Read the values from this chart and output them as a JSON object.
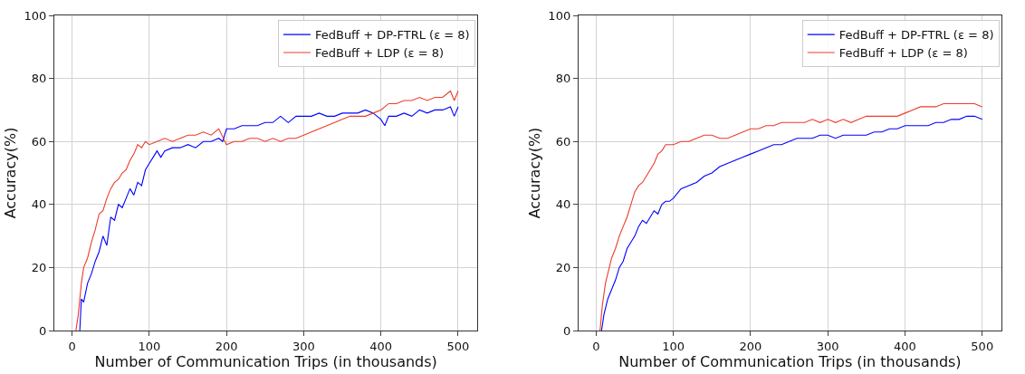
{
  "chart_data": [
    {
      "type": "line",
      "xlabel": "Number of Communication Trips (in thousands)",
      "ylabel": "Accuracy(%)",
      "xlim": [
        -23,
        525
      ],
      "ylim": [
        0,
        100
      ],
      "xticks": [
        0,
        100,
        200,
        300,
        400,
        500
      ],
      "yticks": [
        0,
        20,
        40,
        60,
        80,
        100
      ],
      "grid": true,
      "legend": "top right",
      "line_style": "solid",
      "marker": "none",
      "series": [
        {
          "name": "FedBuff + DP-FTRL (ε = 8)",
          "color": "#0000ff",
          "x": [
            10,
            12,
            15,
            20,
            25,
            30,
            35,
            40,
            45,
            50,
            55,
            60,
            65,
            70,
            75,
            80,
            85,
            90,
            95,
            100,
            105,
            110,
            115,
            120,
            130,
            140,
            150,
            160,
            170,
            180,
            190,
            195,
            200,
            210,
            220,
            230,
            240,
            250,
            260,
            270,
            280,
            290,
            300,
            310,
            320,
            330,
            340,
            350,
            360,
            370,
            380,
            390,
            400,
            405,
            410,
            420,
            430,
            440,
            450,
            460,
            470,
            480,
            490,
            495,
            500
          ],
          "values": [
            0,
            10,
            9,
            15,
            18,
            22,
            25,
            30,
            27,
            36,
            35,
            40,
            39,
            42,
            45,
            43,
            47,
            46,
            51,
            53,
            55,
            57,
            55,
            57,
            58,
            58,
            59,
            58,
            60,
            60,
            61,
            60,
            64,
            64,
            65,
            65,
            65,
            66,
            66,
            68,
            66,
            68,
            68,
            68,
            69,
            68,
            68,
            69,
            69,
            69,
            70,
            69,
            67,
            65,
            68,
            68,
            69,
            68,
            70,
            69,
            70,
            70,
            71,
            68,
            71
          ]
        },
        {
          "name": "FedBuff + LDP (ε = 8)",
          "color": "#ee3b2b",
          "x": [
            5,
            8,
            12,
            15,
            20,
            25,
            30,
            35,
            40,
            45,
            50,
            55,
            60,
            65,
            70,
            75,
            80,
            85,
            90,
            95,
            100,
            110,
            120,
            130,
            140,
            150,
            160,
            170,
            180,
            190,
            200,
            210,
            220,
            230,
            240,
            250,
            260,
            270,
            280,
            290,
            300,
            310,
            320,
            330,
            340,
            350,
            360,
            370,
            380,
            390,
            400,
            410,
            420,
            430,
            440,
            450,
            460,
            470,
            480,
            490,
            495,
            500
          ],
          "values": [
            0,
            5,
            15,
            20,
            23,
            28,
            32,
            37,
            38,
            42,
            45,
            47,
            48,
            50,
            51,
            54,
            56,
            59,
            58,
            60,
            59,
            60,
            61,
            60,
            61,
            62,
            62,
            63,
            62,
            64,
            59,
            60,
            60,
            61,
            61,
            60,
            61,
            60,
            61,
            61,
            62,
            63,
            64,
            65,
            66,
            67,
            68,
            68,
            68,
            69,
            70,
            72,
            72,
            73,
            73,
            74,
            73,
            74,
            74,
            76,
            73,
            76
          ]
        }
      ]
    },
    {
      "type": "line",
      "xlabel": "Number of Communication Trips (in thousands)",
      "ylabel": "Accuracy(%)",
      "xlim": [
        -23,
        525
      ],
      "ylim": [
        0,
        100
      ],
      "xticks": [
        0,
        100,
        200,
        300,
        400,
        500
      ],
      "yticks": [
        0,
        20,
        40,
        60,
        80,
        100
      ],
      "grid": true,
      "legend": "top right",
      "line_style": "solid",
      "marker": "none",
      "series": [
        {
          "name": "FedBuff + DP-FTRL (ε = 8)",
          "color": "#0000ff",
          "x": [
            7,
            10,
            15,
            20,
            25,
            30,
            35,
            40,
            45,
            50,
            55,
            60,
            65,
            70,
            75,
            80,
            85,
            90,
            95,
            100,
            110,
            120,
            130,
            140,
            150,
            160,
            170,
            180,
            190,
            200,
            210,
            220,
            230,
            240,
            250,
            260,
            270,
            280,
            290,
            300,
            310,
            320,
            330,
            340,
            350,
            360,
            370,
            380,
            390,
            400,
            410,
            420,
            430,
            440,
            450,
            460,
            470,
            480,
            490,
            500
          ],
          "values": [
            0,
            5,
            10,
            13,
            16,
            20,
            22,
            26,
            28,
            30,
            33,
            35,
            34,
            36,
            38,
            37,
            40,
            41,
            41,
            42,
            45,
            46,
            47,
            49,
            50,
            52,
            53,
            54,
            55,
            56,
            57,
            58,
            59,
            59,
            60,
            61,
            61,
            61,
            62,
            62,
            61,
            62,
            62,
            62,
            62,
            63,
            63,
            64,
            64,
            65,
            65,
            65,
            65,
            66,
            66,
            67,
            67,
            68,
            68,
            67
          ]
        },
        {
          "name": "FedBuff + LDP (ε = 8)",
          "color": "#ee3b2b",
          "x": [
            5,
            8,
            12,
            15,
            20,
            25,
            30,
            35,
            40,
            45,
            50,
            55,
            60,
            65,
            70,
            75,
            80,
            85,
            90,
            95,
            100,
            110,
            120,
            130,
            140,
            150,
            160,
            170,
            180,
            190,
            200,
            210,
            220,
            230,
            240,
            250,
            260,
            270,
            280,
            290,
            300,
            310,
            320,
            330,
            340,
            350,
            360,
            370,
            380,
            390,
            400,
            410,
            420,
            430,
            440,
            450,
            460,
            470,
            480,
            490,
            500
          ],
          "values": [
            0,
            8,
            15,
            18,
            23,
            26,
            30,
            33,
            36,
            40,
            44,
            46,
            47,
            49,
            51,
            53,
            56,
            57,
            59,
            59,
            59,
            60,
            60,
            61,
            62,
            62,
            61,
            61,
            62,
            63,
            64,
            64,
            65,
            65,
            66,
            66,
            66,
            66,
            67,
            66,
            67,
            66,
            67,
            66,
            67,
            68,
            68,
            68,
            68,
            68,
            69,
            70,
            71,
            71,
            71,
            72,
            72,
            72,
            72,
            72,
            71
          ]
        }
      ]
    }
  ]
}
